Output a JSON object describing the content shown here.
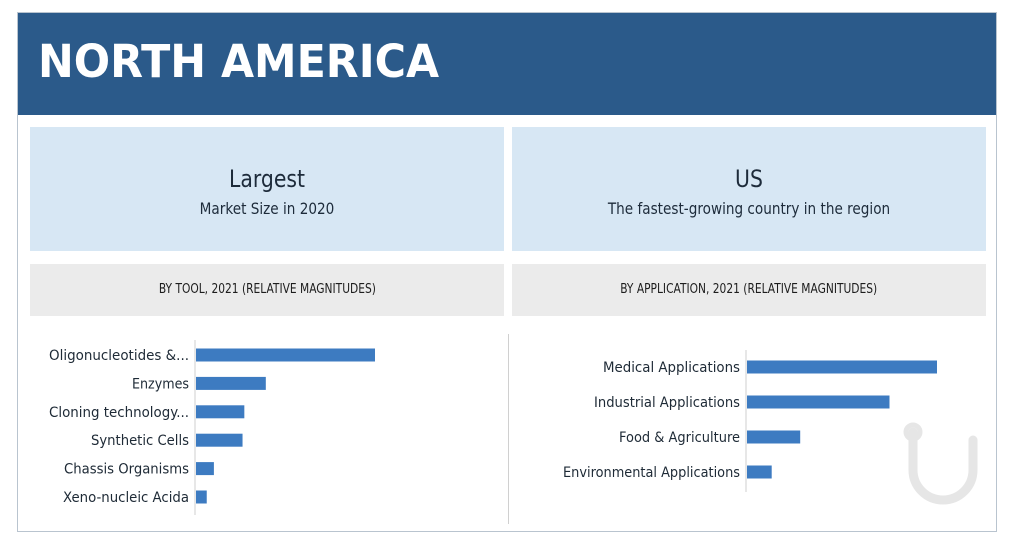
{
  "region": "NORTH AMERICA",
  "stats": {
    "left": {
      "big": "Largest",
      "small": "Market Size in 2020"
    },
    "right": {
      "big": "US",
      "small": "The fastest-growing country in the region"
    }
  },
  "colors": {
    "banner": "#2b5a8a",
    "bar": "#3d7bc1",
    "stat_bg": "#d7e7f4",
    "header_bg": "#ebebeb"
  },
  "chart_data": [
    {
      "type": "bar",
      "orientation": "horizontal",
      "title": "BY TOOL, 2021 (RELATIVE MAGNITUDES)",
      "categories": [
        "Oligonucleotides &...",
        "Enzymes",
        "Cloning technology...",
        "Synthetic Cells",
        "Chassis Organisms",
        "Xeno-nucleic Acida"
      ],
      "values": [
        100,
        39,
        27,
        26,
        10,
        6
      ],
      "xlim": [
        0,
        100
      ],
      "grid": false,
      "legend": "none"
    },
    {
      "type": "bar",
      "orientation": "horizontal",
      "title": "BY APPLICATION, 2021 (RELATIVE MAGNITUDES)",
      "categories": [
        "Medical Applications",
        "Industrial Applications",
        "Food & Agriculture",
        "Environmental Applications"
      ],
      "values": [
        100,
        75,
        28,
        13
      ],
      "xlim": [
        0,
        100
      ],
      "grid": false,
      "legend": "none"
    }
  ]
}
